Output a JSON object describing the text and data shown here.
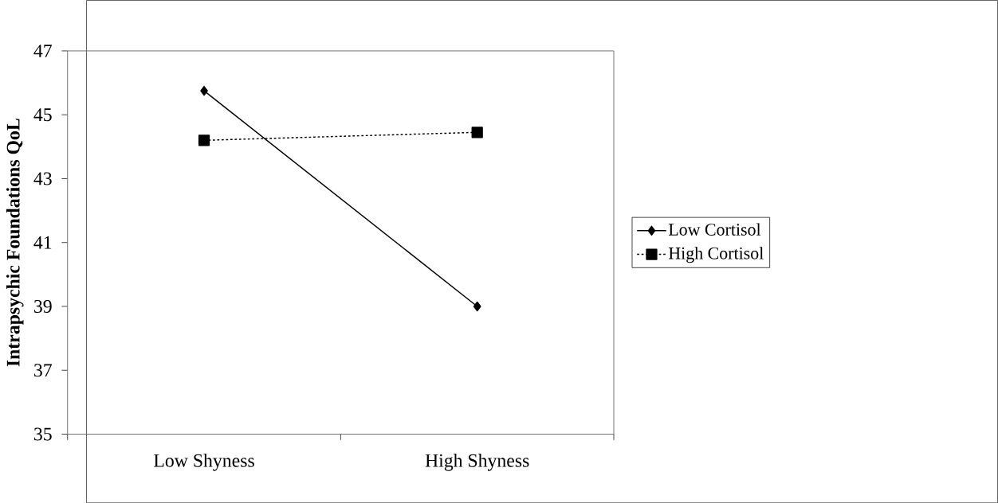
{
  "chart_data": {
    "type": "line",
    "ylabel": "Intrapsychic Foundations QoL",
    "categories": [
      "Low Shyness",
      "High Shyness"
    ],
    "series": [
      {
        "name": "Low Cortisol",
        "color": "#000000",
        "values": [
          45.75,
          39.0
        ],
        "marker": "diamond",
        "line_style": "solid"
      },
      {
        "name": "High Cortisol",
        "color": "#000000",
        "values": [
          44.2,
          44.45
        ],
        "marker": "square",
        "line_style": "dashed"
      }
    ],
    "ylim": [
      35,
      47
    ],
    "yticks": [
      35,
      37,
      39,
      41,
      43,
      45,
      47
    ],
    "grid": false,
    "legend": "right"
  }
}
